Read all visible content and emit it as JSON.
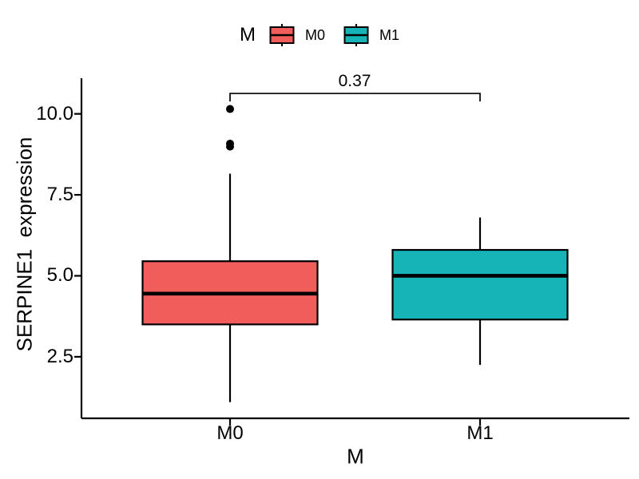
{
  "colors": {
    "m0_fill": "#F15D5B",
    "m1_fill": "#16B4B7",
    "stroke": "#000000",
    "text": "#000000",
    "background": "#FFFFFF"
  },
  "legend": {
    "title": "M",
    "items": [
      {
        "label": "M0",
        "color": "#F15D5B"
      },
      {
        "label": "M1",
        "color": "#16B4B7"
      }
    ]
  },
  "axes": {
    "y_title": "SERPINE1  expression",
    "x_title": "M"
  },
  "annotation": {
    "p_value": "0.37"
  },
  "chart_data": {
    "type": "boxplot",
    "title": "",
    "xlabel": "M",
    "ylabel": "SERPINE1 expression",
    "categories": [
      "M0",
      "M1"
    ],
    "legend_title": "M",
    "legend_position": "top",
    "ylim": [
      0.6,
      11.1
    ],
    "y_ticks": [
      2.5,
      5.0,
      7.5,
      10.0
    ],
    "y_tick_labels": [
      "2.5",
      "5.0",
      "7.5",
      "10.0"
    ],
    "grid": false,
    "series": [
      {
        "name": "M0",
        "fill": "#F15D5B",
        "whisker_low": 1.1,
        "q1": 3.5,
        "median": 4.45,
        "q3": 5.45,
        "whisker_high": 8.15,
        "outliers": [
          10.15,
          9.08,
          8.99
        ]
      },
      {
        "name": "M1",
        "fill": "#16B4B7",
        "whisker_low": 2.25,
        "q1": 3.65,
        "median": 5.0,
        "q3": 5.8,
        "whisker_high": 6.8,
        "outliers": []
      }
    ],
    "comparison": {
      "groups": [
        "M0",
        "M1"
      ],
      "label": "0.37",
      "bar_y": 10.63
    }
  }
}
